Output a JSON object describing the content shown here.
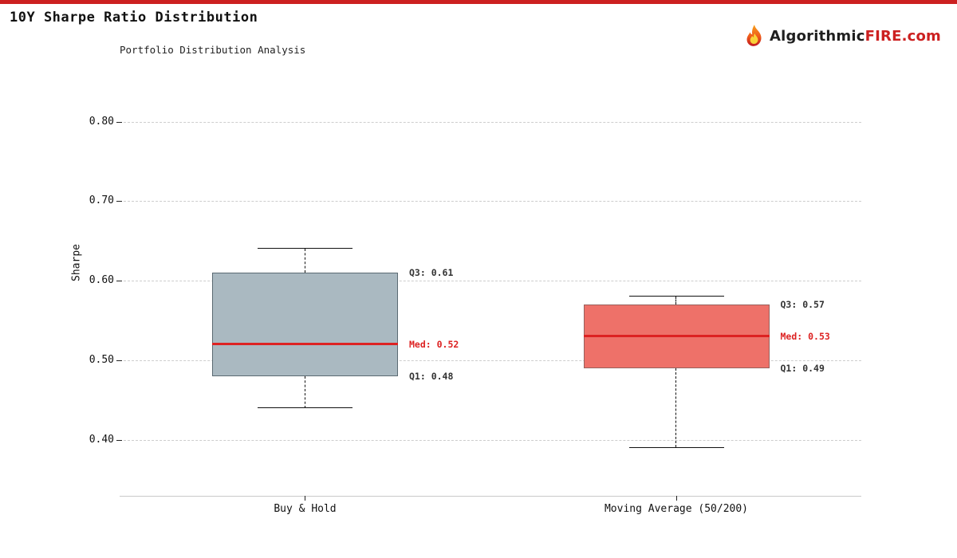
{
  "header": {
    "title": "10Y Sharpe Ratio Distribution",
    "accent_color": "#cc2020",
    "logo": {
      "part_dark": "Algorithmic",
      "part_red": "FIRE",
      "part_suffix": ".com",
      "dark_color": "#1f1f1f",
      "red_color": "#cc2020"
    }
  },
  "chart_data": {
    "type": "boxplot",
    "title": "10Y Sharpe Ratio Distribution",
    "subtitle": "Portfolio Distribution Analysis",
    "ylabel": "Sharpe",
    "xlabel": "",
    "categories": [
      "Buy & Hold",
      "Moving Average (50/200)"
    ],
    "yticks": [
      "0.40",
      "0.50",
      "0.60",
      "0.70",
      "0.80"
    ],
    "ylim": [
      0.33,
      0.82
    ],
    "grid": "horizontal-dashed",
    "median_color": "#dd2222",
    "annotation_color": "#333333",
    "series": [
      {
        "label": "Buy & Hold",
        "whisker_low": 0.44,
        "q1": 0.48,
        "median": 0.52,
        "q3": 0.61,
        "whisker_high": 0.64,
        "fill": "#aab9c1",
        "edge": "#5a6a72",
        "labels": {
          "q3": "Q3: 0.61",
          "med": "Med: 0.52",
          "q1": "Q1: 0.48"
        }
      },
      {
        "label": "Moving Average (50/200)",
        "whisker_low": 0.39,
        "q1": 0.49,
        "median": 0.53,
        "q3": 0.57,
        "whisker_high": 0.58,
        "fill": "#ee7169",
        "edge": "#97605c",
        "labels": {
          "q3": "Q3: 0.57",
          "med": "Med: 0.53",
          "q1": "Q1: 0.49"
        }
      }
    ]
  }
}
